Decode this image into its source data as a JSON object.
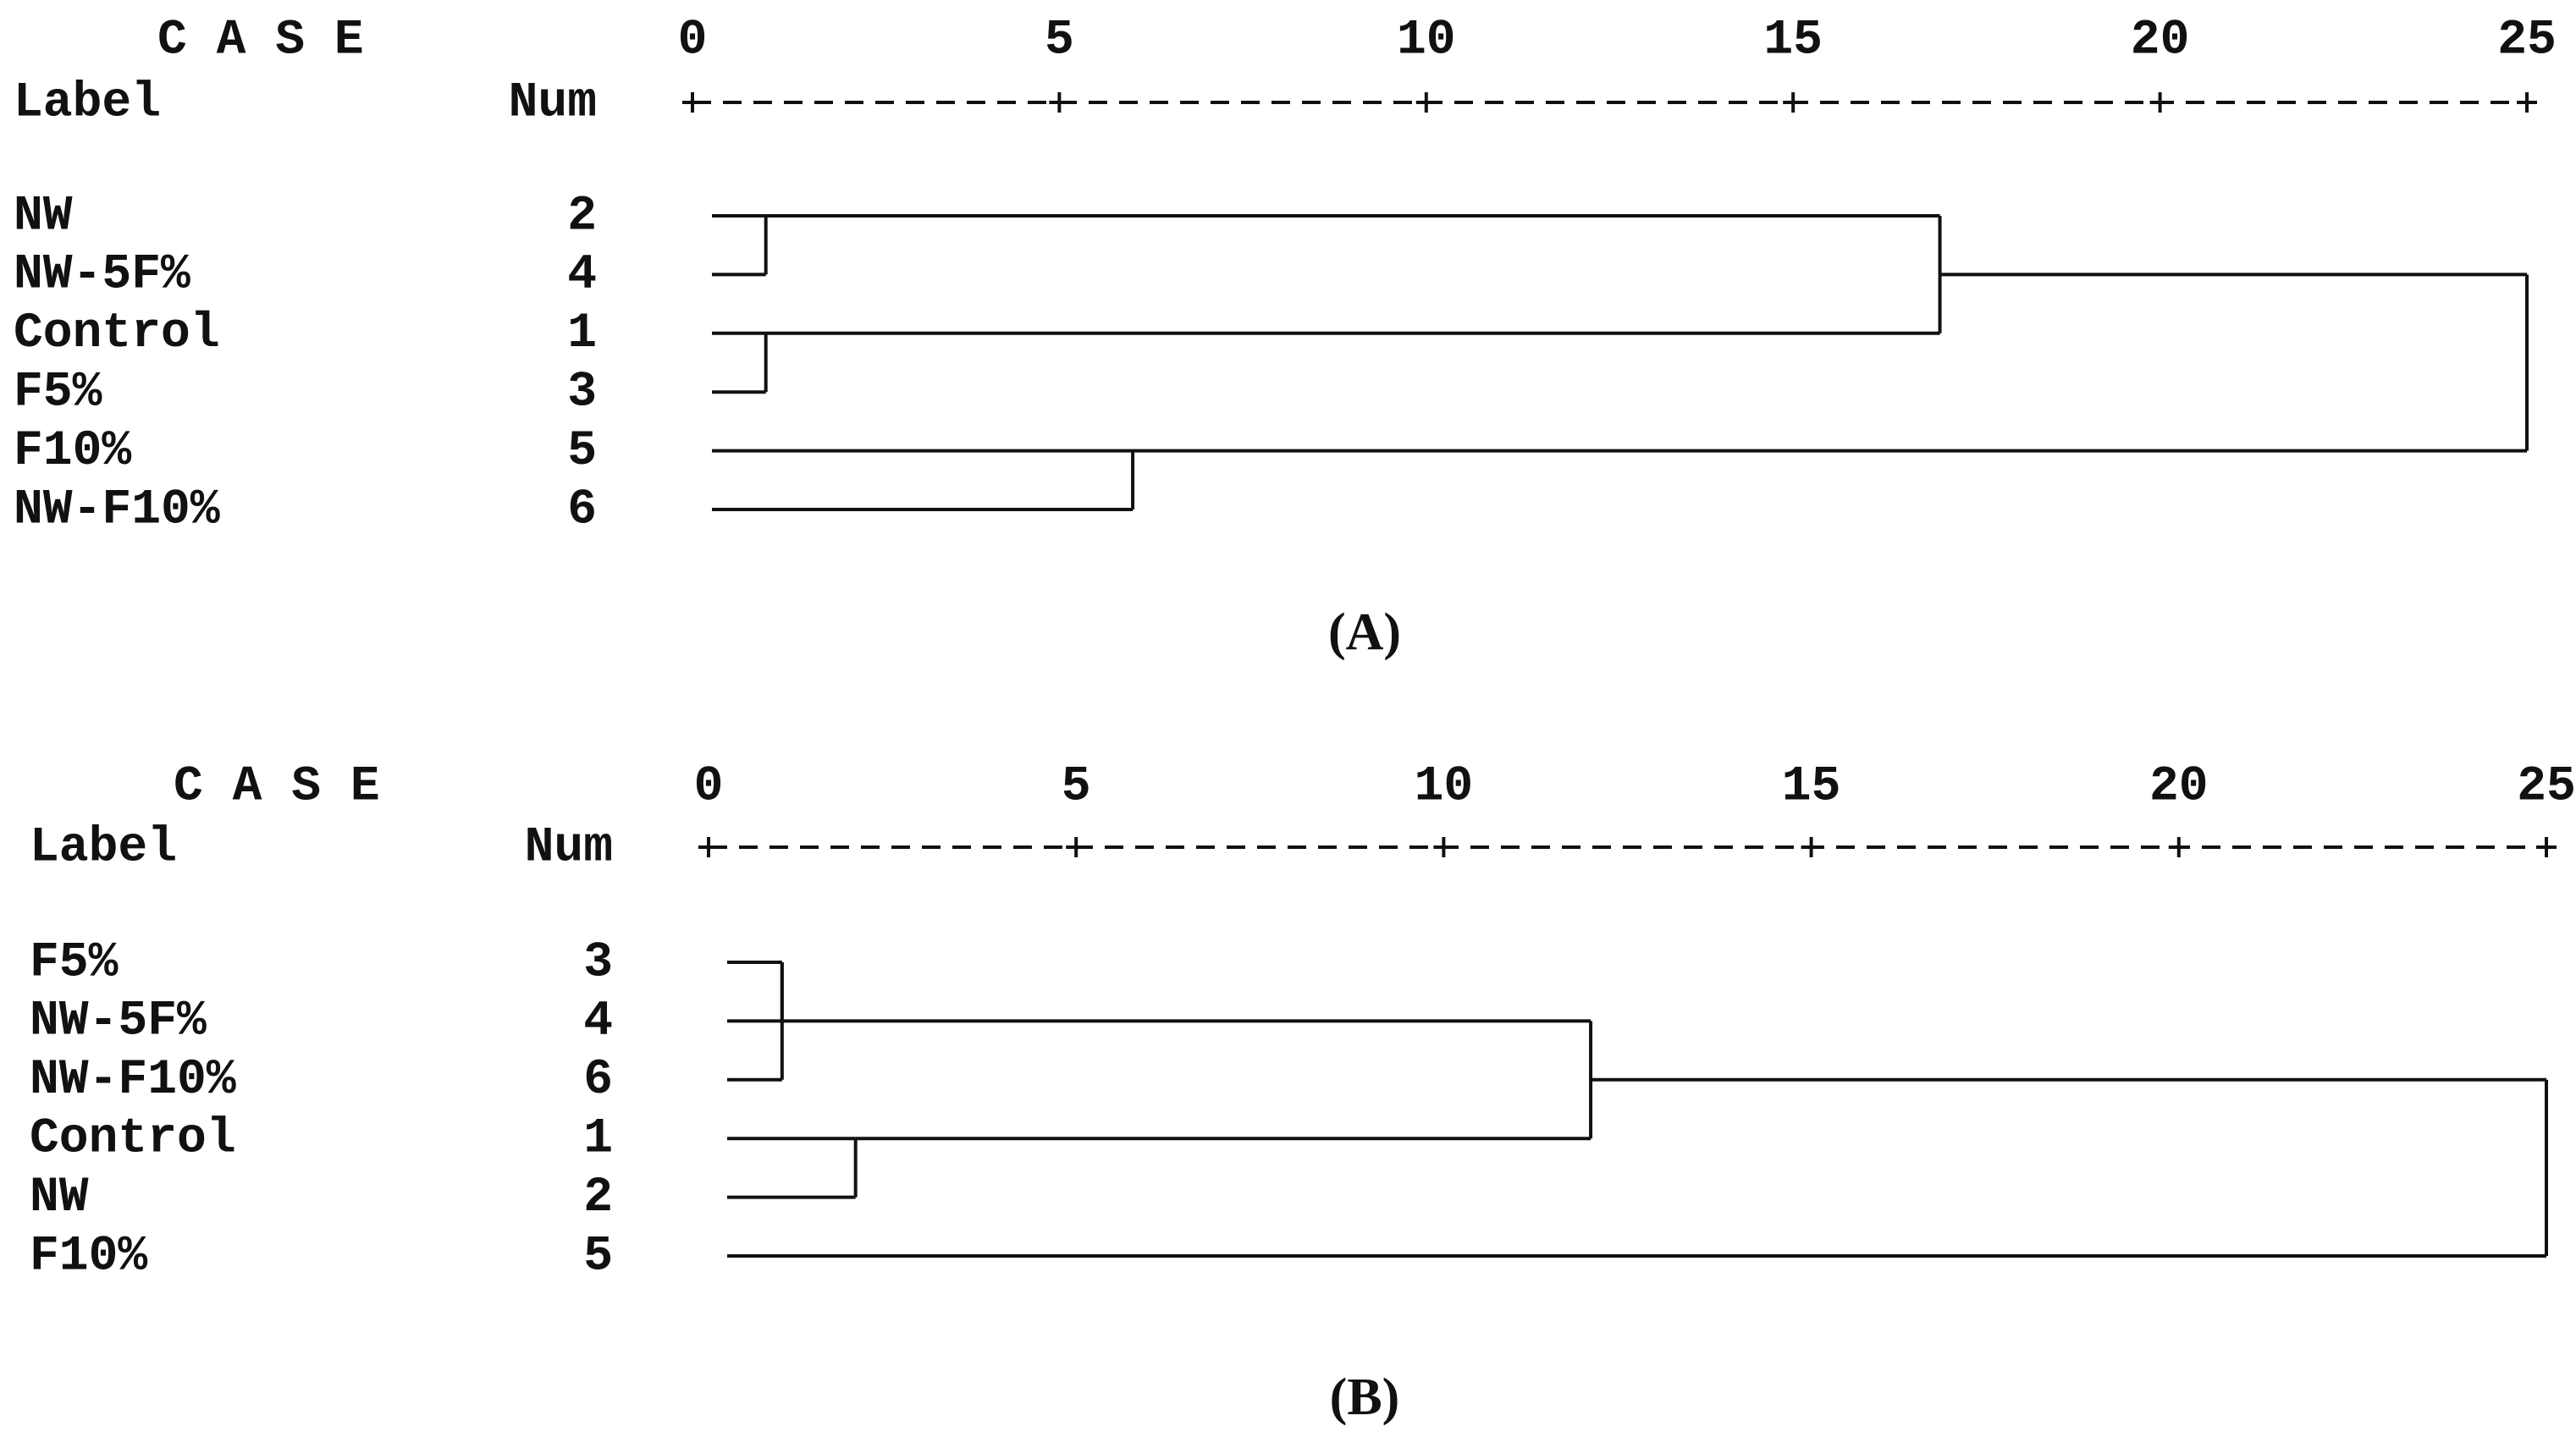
{
  "chart_data": [
    {
      "type": "dendrogram",
      "panel": "(A)",
      "case_heading": "C A S E",
      "label_heading": "Label",
      "num_heading": "Num",
      "xlim": [
        0,
        25
      ],
      "xticks": [
        0,
        5,
        10,
        15,
        20,
        25
      ],
      "leaves": [
        {
          "label": "NW",
          "num": 2
        },
        {
          "label": "NW-5F%",
          "num": 4
        },
        {
          "label": "Control",
          "num": 1
        },
        {
          "label": "F5%",
          "num": 3
        },
        {
          "label": "F10%",
          "num": 5
        },
        {
          "label": "NW-F10%",
          "num": 6
        }
      ],
      "merges": [
        {
          "a": 0,
          "b": 1,
          "height": 1
        },
        {
          "a": 2,
          "b": 3,
          "height": 1
        },
        {
          "a": 6,
          "b": 7,
          "height": 17
        },
        {
          "a": 4,
          "b": 5,
          "height": 6
        },
        {
          "a": 8,
          "b": 9,
          "height": 25
        }
      ]
    },
    {
      "type": "dendrogram",
      "panel": "(B)",
      "case_heading": "C A S E",
      "label_heading": "Label",
      "num_heading": "Num",
      "xlim": [
        0,
        25
      ],
      "xticks": [
        0,
        5,
        10,
        15,
        20,
        25
      ],
      "leaves": [
        {
          "label": "F5%",
          "num": 3
        },
        {
          "label": "NW-5F%",
          "num": 4
        },
        {
          "label": "NW-F10%",
          "num": 6
        },
        {
          "label": "Control",
          "num": 1
        },
        {
          "label": "NW",
          "num": 2
        },
        {
          "label": "F10%",
          "num": 5
        }
      ],
      "merges": [
        {
          "a": 0,
          "b": 1,
          "height": 1
        },
        {
          "a": 6,
          "b": 2,
          "height": 1
        },
        {
          "a": 3,
          "b": 4,
          "height": 2
        },
        {
          "a": 7,
          "b": 8,
          "height": 12
        },
        {
          "a": 9,
          "b": 5,
          "height": 25
        }
      ]
    }
  ]
}
